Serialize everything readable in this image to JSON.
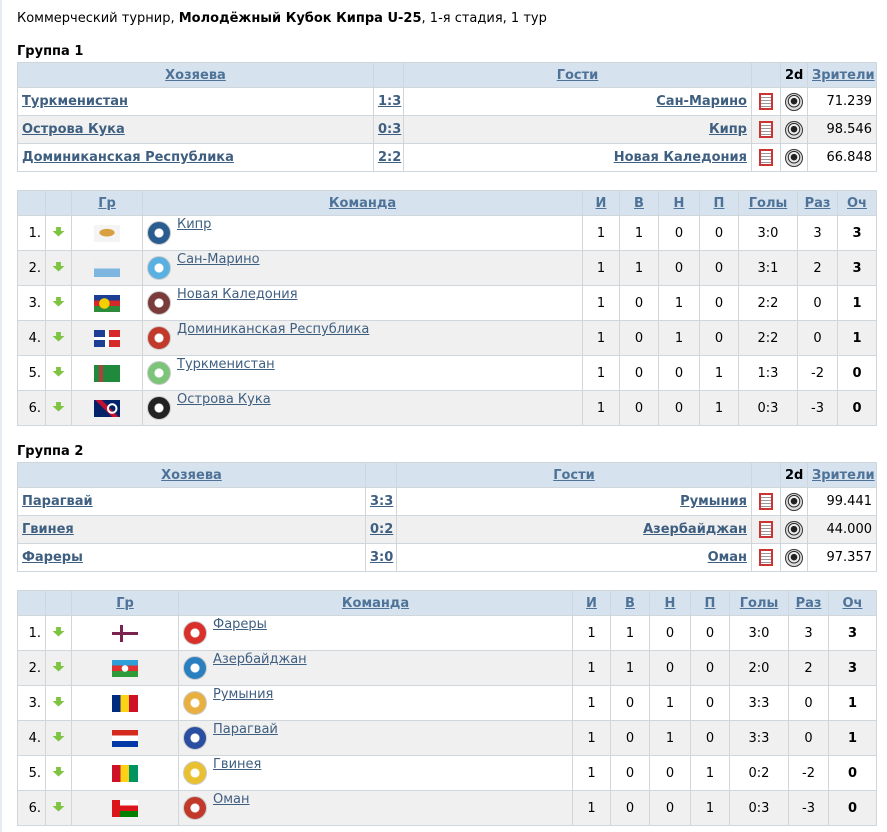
{
  "header": {
    "prefix": "Коммерческий турнир, ",
    "tournament": "Молодёжный Кубок Кипра U-25",
    "suffix": ", 1-я стадия, 1 тур"
  },
  "match_headers": {
    "home": "Хозяева",
    "guests": "Гости",
    "twod": "2d",
    "viewers": "Зрители"
  },
  "standing_headers": {
    "group": "Гр",
    "team": "Команда",
    "played": "И",
    "won": "В",
    "draw": "Н",
    "lost": "П",
    "goals": "Голы",
    "diff": "Раз",
    "points": "Оч"
  },
  "groups": [
    {
      "title": "Группа 1",
      "matches": [
        {
          "home": "Туркменистан",
          "score": "1:3",
          "guest": "Сан-Марино",
          "viewers": "71.239"
        },
        {
          "home": "Острова Кука",
          "score": "0:3",
          "guest": "Кипр",
          "viewers": "98.546"
        },
        {
          "home": "Доминиканская Республика",
          "score": "2:2",
          "guest": "Новая Каледония",
          "viewers": "66.848"
        }
      ],
      "standings": [
        {
          "pos": "1.",
          "flag": "cyprus",
          "logo": "#2a5d8f",
          "team": "Кипр",
          "p": "1",
          "w": "1",
          "d": "0",
          "l": "0",
          "goals": "3:0",
          "diff": "3",
          "pts": "3"
        },
        {
          "pos": "2.",
          "flag": "sanmarino",
          "logo": "#5ab0e0",
          "team": "Сан-Марино",
          "p": "1",
          "w": "1",
          "d": "0",
          "l": "0",
          "goals": "3:1",
          "diff": "2",
          "pts": "3"
        },
        {
          "pos": "3.",
          "flag": "newcaledonia",
          "logo": "#7a3b3b",
          "team": "Новая Каледония",
          "p": "1",
          "w": "0",
          "d": "1",
          "l": "0",
          "goals": "2:2",
          "diff": "0",
          "pts": "1"
        },
        {
          "pos": "4.",
          "flag": "dominican",
          "logo": "#c0392b",
          "team": "Доминиканская Республика",
          "p": "1",
          "w": "0",
          "d": "1",
          "l": "0",
          "goals": "2:2",
          "diff": "0",
          "pts": "1"
        },
        {
          "pos": "5.",
          "flag": "turkmenistan",
          "logo": "#7cc47a",
          "team": "Туркменистан",
          "p": "1",
          "w": "0",
          "d": "0",
          "l": "1",
          "goals": "1:3",
          "diff": "-2",
          "pts": "0"
        },
        {
          "pos": "6.",
          "flag": "cookislands",
          "logo": "#222222",
          "team": "Острова Кука",
          "p": "1",
          "w": "0",
          "d": "0",
          "l": "1",
          "goals": "0:3",
          "diff": "-3",
          "pts": "0"
        }
      ]
    },
    {
      "title": "Группа 2",
      "matches": [
        {
          "home": "Парагвай",
          "score": "3:3",
          "guest": "Румыния",
          "viewers": "99.441"
        },
        {
          "home": "Гвинея",
          "score": "0:2",
          "guest": "Азербайджан",
          "viewers": "44.000"
        },
        {
          "home": "Фареры",
          "score": "3:0",
          "guest": "Оман",
          "viewers": "97.357"
        }
      ],
      "standings": [
        {
          "pos": "1.",
          "flag": "faroe",
          "logo": "#d9302c",
          "team": "Фареры",
          "p": "1",
          "w": "1",
          "d": "0",
          "l": "0",
          "goals": "3:0",
          "diff": "3",
          "pts": "3"
        },
        {
          "pos": "2.",
          "flag": "azerbaijan",
          "logo": "#2a7fc0",
          "team": "Азербайджан",
          "p": "1",
          "w": "1",
          "d": "0",
          "l": "0",
          "goals": "2:0",
          "diff": "2",
          "pts": "3"
        },
        {
          "pos": "3.",
          "flag": "romania",
          "logo": "#e8b040",
          "team": "Румыния",
          "p": "1",
          "w": "0",
          "d": "1",
          "l": "0",
          "goals": "3:3",
          "diff": "0",
          "pts": "1"
        },
        {
          "pos": "4.",
          "flag": "paraguay",
          "logo": "#2a4fa0",
          "team": "Парагвай",
          "p": "1",
          "w": "0",
          "d": "1",
          "l": "0",
          "goals": "3:3",
          "diff": "0",
          "pts": "1"
        },
        {
          "pos": "5.",
          "flag": "guinea",
          "logo": "#e8c030",
          "team": "Гвинея",
          "p": "1",
          "w": "0",
          "d": "0",
          "l": "1",
          "goals": "0:2",
          "diff": "-2",
          "pts": "0"
        },
        {
          "pos": "6.",
          "flag": "oman",
          "logo": "#c0392b",
          "team": "Оман",
          "p": "1",
          "w": "0",
          "d": "0",
          "l": "1",
          "goals": "0:3",
          "diff": "-3",
          "pts": "0"
        }
      ]
    }
  ]
}
